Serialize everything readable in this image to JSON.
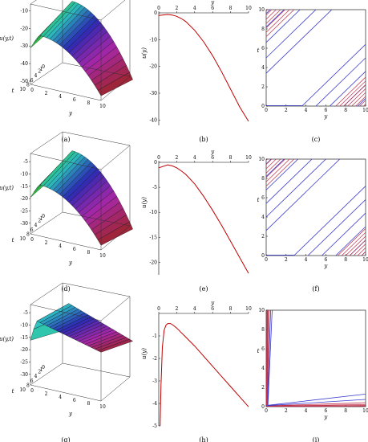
{
  "panel_labels": [
    "(a)",
    "(b)",
    "(c)",
    "(d)",
    "(e)",
    "(f)",
    "(g)",
    "(h)",
    "(i)"
  ],
  "chart_data": [
    {
      "id": "a",
      "type": "surface3d",
      "zlabel": "u(y,t)",
      "xlabel": "y",
      "ylabel": "t",
      "zticks": [
        -10,
        -20,
        -30,
        -40,
        -50
      ],
      "yticks": [
        0,
        2,
        4,
        6,
        8,
        10
      ],
      "tticks": [
        0,
        1,
        2,
        4,
        6,
        8,
        10
      ],
      "zmin": -50,
      "zmax": -8,
      "peak_y": 1.2
    },
    {
      "id": "b",
      "type": "line",
      "xlabel": "y",
      "ylabel": "u(y)",
      "xticks": [
        0,
        2,
        4,
        6,
        8,
        10
      ],
      "yticks": [
        0,
        -10,
        -20,
        -30,
        -40
      ],
      "xlim": [
        0,
        10
      ],
      "ylim": [
        -42,
        0
      ],
      "x_axis_on_top": true,
      "series": [
        {
          "color": "#c00000",
          "x": [
            0,
            1,
            1.5,
            2,
            2.5,
            3,
            4,
            5,
            6,
            7,
            8,
            9,
            10
          ],
          "y": [
            -1,
            -0.6,
            -0.8,
            -1.3,
            -2.1,
            -3.2,
            -6.5,
            -10.8,
            -16,
            -22,
            -28.5,
            -35,
            -40.5
          ]
        }
      ]
    },
    {
      "id": "c",
      "type": "characteristics",
      "xlabel": "y",
      "ylabel": "t",
      "xticks": [
        0,
        2,
        4,
        6,
        8,
        10
      ],
      "yticks": [
        0,
        2,
        4,
        6,
        8,
        10
      ],
      "xlim": [
        0,
        10
      ],
      "ylim": [
        0,
        10
      ],
      "upper_intercepts": [
        3.4,
        5.0,
        6.6,
        8.2,
        9.6
      ],
      "upper_hatch_from": 0.05,
      "lower_starts": [
        3.6,
        5.0,
        6.4,
        7.8,
        9.2
      ],
      "lower_hatch_from": 7.0
    },
    {
      "id": "d",
      "type": "surface3d",
      "zlabel": "u(y,t)",
      "xlabel": "y",
      "ylabel": "t",
      "zticks": [
        -5,
        -10,
        -15,
        -20,
        -25,
        -30
      ],
      "yticks": [
        0,
        2,
        4,
        6,
        8,
        10
      ],
      "tticks": [
        0,
        1,
        2,
        4,
        6,
        8,
        10
      ],
      "zmin": -33,
      "zmax": -3,
      "peak_y": 1.2
    },
    {
      "id": "e",
      "type": "line",
      "xlabel": "y",
      "ylabel": "u(y)",
      "xticks": [
        0,
        2,
        4,
        6,
        8,
        10
      ],
      "yticks": [
        0,
        -5,
        -10,
        -15,
        -20
      ],
      "xlim": [
        0,
        10
      ],
      "ylim": [
        -22.5,
        0
      ],
      "x_axis_on_top": true,
      "series": [
        {
          "color": "#c00000",
          "x": [
            0,
            1,
            1.5,
            2,
            2.5,
            3,
            4,
            5,
            6,
            7,
            8,
            9,
            10
          ],
          "y": [
            -1.1,
            -0.5,
            -0.7,
            -1.1,
            -1.7,
            -2.4,
            -4.3,
            -6.8,
            -9.6,
            -12.6,
            -15.8,
            -19,
            -22.2
          ]
        }
      ]
    },
    {
      "id": "f",
      "type": "characteristics",
      "xlabel": "y",
      "ylabel": "t",
      "xticks": [
        0,
        2,
        4,
        6,
        8,
        10
      ],
      "yticks": [
        0,
        2,
        4,
        6,
        8,
        10
      ],
      "xlim": [
        0,
        10
      ],
      "ylim": [
        0,
        10
      ],
      "upper_intercepts": [
        2.6,
        4.0,
        5.4,
        6.8,
        8.2,
        9.5
      ],
      "upper_hatch_from": 0.05,
      "lower_starts": [
        2.8,
        4.2,
        5.6,
        7.0,
        8.4,
        9.6
      ],
      "lower_hatch_from": 7.2
    },
    {
      "id": "g",
      "type": "surface3d",
      "zlabel": "u(y,t)",
      "xlabel": "y",
      "ylabel": "t",
      "zticks": [
        -5,
        -10,
        -15,
        -20,
        -25,
        -30
      ],
      "yticks": [
        0,
        2,
        4,
        6,
        8,
        10
      ],
      "tticks": [
        0,
        1,
        2,
        4,
        6,
        8,
        10
      ],
      "zmin": -33,
      "zmax": -3,
      "peak_y": 0.6
    },
    {
      "id": "h",
      "type": "line",
      "xlabel": "y",
      "ylabel": "u(y)",
      "xticks": [
        0,
        2,
        4,
        6,
        8,
        10
      ],
      "yticks": [
        -1,
        -2,
        -3,
        -4,
        -5
      ],
      "xlim": [
        0,
        10
      ],
      "ylim": [
        -5,
        0
      ],
      "x_axis_on_top": true,
      "series": [
        {
          "color": "#c00000",
          "x": [
            0.15,
            0.25,
            0.4,
            0.6,
            0.8,
            1,
            1.3,
            1.6,
            2,
            3,
            4,
            5,
            6,
            7,
            8,
            9,
            10
          ],
          "y": [
            -5,
            -3.2,
            -1.5,
            -0.75,
            -0.52,
            -0.45,
            -0.45,
            -0.52,
            -0.65,
            -1.05,
            -1.45,
            -1.9,
            -2.35,
            -2.8,
            -3.25,
            -3.7,
            -4.15
          ]
        }
      ]
    },
    {
      "id": "i",
      "type": "characteristics",
      "xlabel": "y",
      "ylabel": "t",
      "xticks": [
        0,
        2,
        4,
        6,
        8,
        10
      ],
      "yticks": [
        0,
        2,
        4,
        6,
        8,
        10
      ],
      "xlim": [
        0,
        10
      ],
      "ylim": [
        0,
        10
      ]
    }
  ]
}
